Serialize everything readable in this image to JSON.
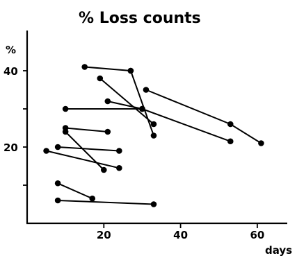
{
  "chart_data": {
    "type": "scatter",
    "title": "% Loss counts",
    "ylabel": "%",
    "xlabel": "days",
    "xlim": [
      0,
      68
    ],
    "ylim": [
      0,
      50
    ],
    "x_ticks": [
      20,
      40,
      60
    ],
    "y_ticks": [
      10,
      20,
      30,
      40
    ],
    "y_tick_labels": [
      {
        "value": 20,
        "label": "20"
      },
      {
        "value": 40,
        "label": "40"
      }
    ],
    "grid": false,
    "style": "connected paired points, black",
    "series": [
      {
        "x": [
          15,
          27
        ],
        "y": [
          41,
          40
        ]
      },
      {
        "x": [
          27,
          33
        ],
        "y": [
          40,
          23
        ]
      },
      {
        "x": [
          19,
          33
        ],
        "y": [
          38,
          26
        ]
      },
      {
        "x": [
          21,
          30
        ],
        "y": [
          32,
          30
        ]
      },
      {
        "x": [
          10,
          30
        ],
        "y": [
          30,
          30
        ]
      },
      {
        "x": [
          31,
          53,
          61
        ],
        "y": [
          35,
          26,
          21
        ]
      },
      {
        "x": [
          30,
          53
        ],
        "y": [
          30,
          21.5
        ]
      },
      {
        "x": [
          10,
          21
        ],
        "y": [
          25,
          24
        ]
      },
      {
        "x": [
          10,
          20
        ],
        "y": [
          24,
          14
        ]
      },
      {
        "x": [
          8,
          24
        ],
        "y": [
          20,
          19
        ]
      },
      {
        "x": [
          5,
          24
        ],
        "y": [
          19,
          14.5
        ]
      },
      {
        "x": [
          8,
          17
        ],
        "y": [
          10.5,
          6.5
        ]
      },
      {
        "x": [
          8,
          33
        ],
        "y": [
          6,
          5
        ]
      }
    ]
  }
}
